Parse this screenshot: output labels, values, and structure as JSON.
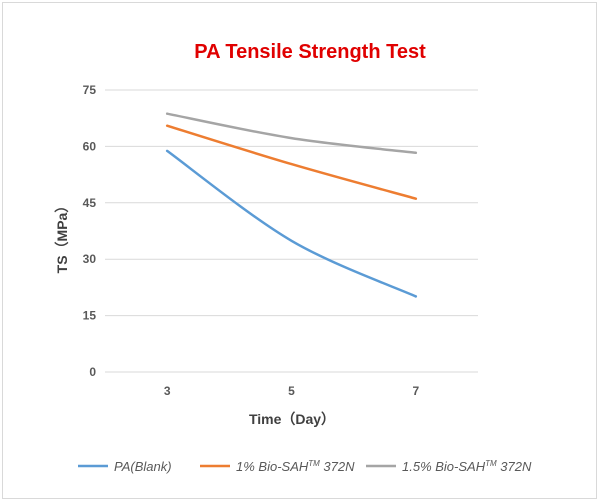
{
  "chart_data": {
    "type": "line",
    "title": "PA Tensile Strength Test",
    "xlabel": "Time（Day）",
    "ylabel": "TS（MPa）",
    "categories": [
      "3",
      "5",
      "7"
    ],
    "x": [
      3,
      5,
      7
    ],
    "ylim": [
      0,
      75
    ],
    "yticks": [
      0,
      15,
      30,
      45,
      60,
      75
    ],
    "grid": true,
    "legend_position": "bottom",
    "series": [
      {
        "name": "PA(Blank)",
        "legend_main": "PA(Blank)",
        "legend_sup": "",
        "legend_tail": "",
        "color": "#5b9bd5",
        "values": [
          58.8,
          34.9,
          20.1
        ]
      },
      {
        "name": "1% Bio-SAH™ 372N",
        "legend_main": "1% Bio-SAH",
        "legend_sup": "TM",
        "legend_tail": " 372N",
        "color": "#ed7d31",
        "values": [
          65.5,
          55.3,
          46.1
        ]
      },
      {
        "name": "1.5% Bio-SAH™ 372N",
        "legend_main": "1.5% Bio-SAH",
        "legend_sup": "TM",
        "legend_tail": " 372N",
        "color": "#a5a5a5",
        "values": [
          68.7,
          62.2,
          58.3
        ]
      }
    ]
  },
  "colors": {
    "title": "#e00000",
    "grid": "#d9d9d9",
    "tick_text": "#595959"
  }
}
